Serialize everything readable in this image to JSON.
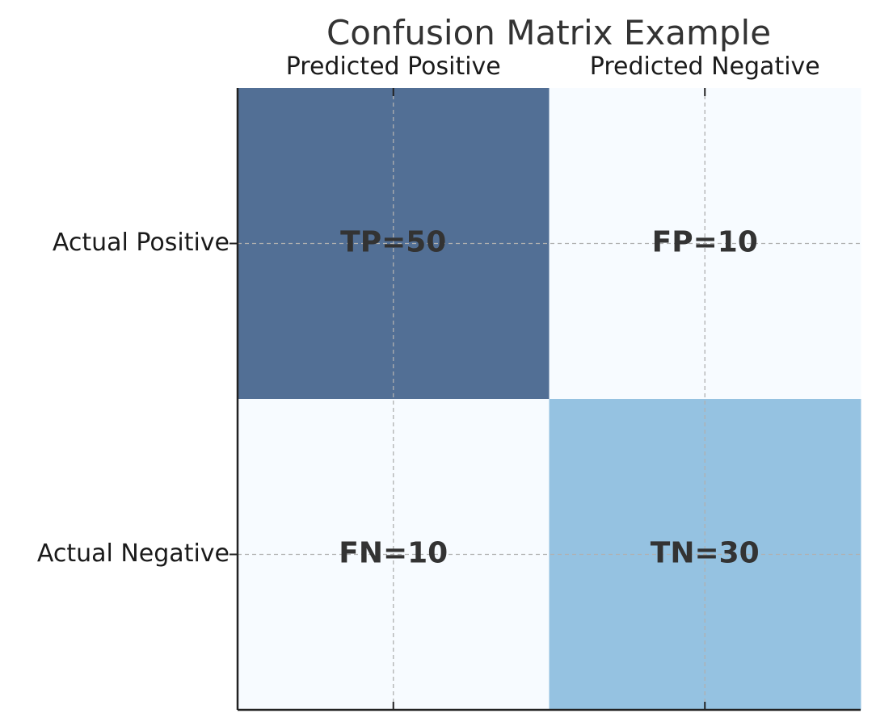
{
  "chart_data": {
    "type": "heatmap",
    "title": "Confusion Matrix Example",
    "col_labels": [
      "Predicted Positive",
      "Predicted Negative"
    ],
    "row_labels": [
      "Actual Positive",
      "Actual Negative"
    ],
    "values": [
      [
        50,
        10
      ],
      [
        10,
        30
      ]
    ],
    "cell_text": [
      [
        "TP=50",
        "FP=10"
      ],
      [
        "FN=10",
        "TN=30"
      ]
    ],
    "grid": true,
    "x_axis_position": "top",
    "colormap": {
      "low": "#f7fbff",
      "mid": "#95c2e1",
      "high": "#526f95"
    }
  }
}
